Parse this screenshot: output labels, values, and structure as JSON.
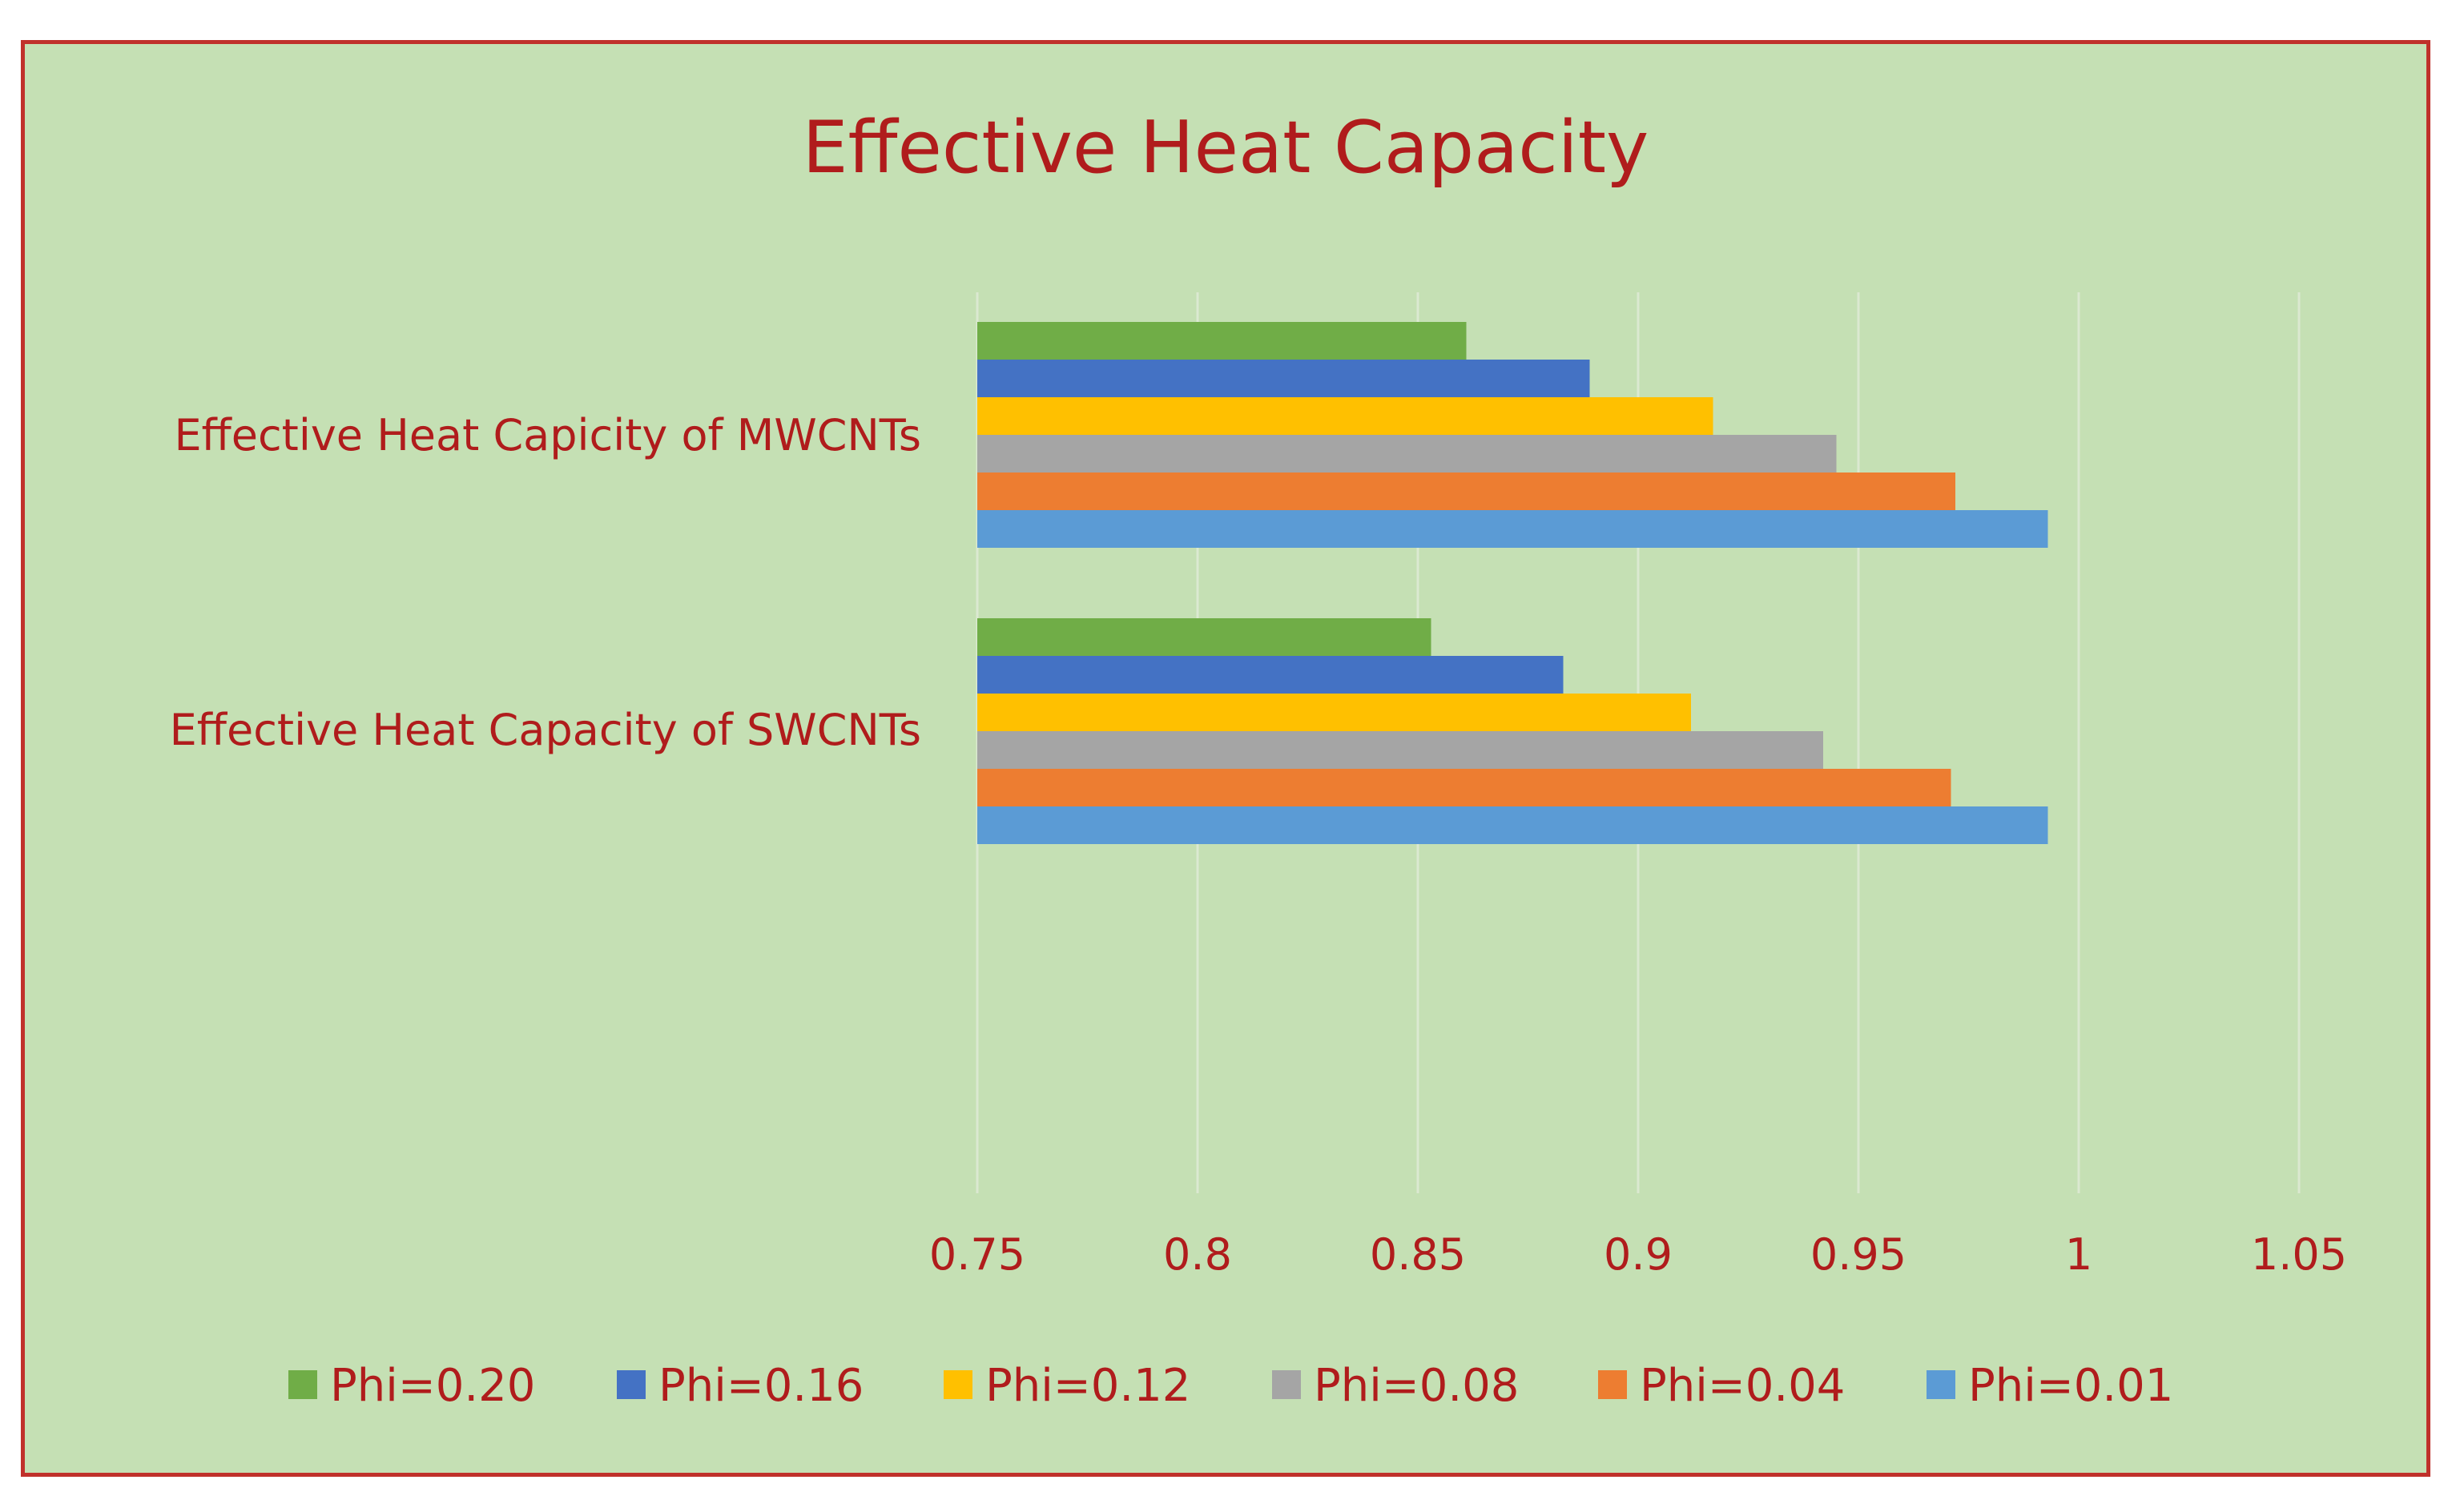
{
  "chart_data": {
    "type": "bar",
    "orientation": "horizontal",
    "title": "Effective Heat Capacity",
    "categories": [
      "Effective Heat Capicity of MWCNTs",
      "Effective Heat Capacity of SWCNTs"
    ],
    "series": [
      {
        "name": "Phi=0.20",
        "color": "#70ad47",
        "values": [
          0.861,
          0.853
        ]
      },
      {
        "name": "Phi=0.16",
        "color": "#4472c4",
        "values": [
          0.889,
          0.883
        ]
      },
      {
        "name": "Phi=0.12",
        "color": "#ffc000",
        "values": [
          0.917,
          0.912
        ]
      },
      {
        "name": "Phi=0.08",
        "color": "#a5a5a5",
        "values": [
          0.945,
          0.942
        ]
      },
      {
        "name": "Phi=0.04",
        "color": "#ed7d31",
        "values": [
          0.972,
          0.971
        ]
      },
      {
        "name": "Phi=0.01",
        "color": "#5b9bd5",
        "values": [
          0.993,
          0.993
        ]
      }
    ],
    "xlim": [
      0.75,
      1.05
    ],
    "xticks": [
      "0.75",
      "0.8",
      "0.85",
      "0.9",
      "0.95",
      "1",
      "1.05"
    ],
    "xlabel": "",
    "ylabel": "",
    "grid": true,
    "legend_position": "bottom"
  }
}
